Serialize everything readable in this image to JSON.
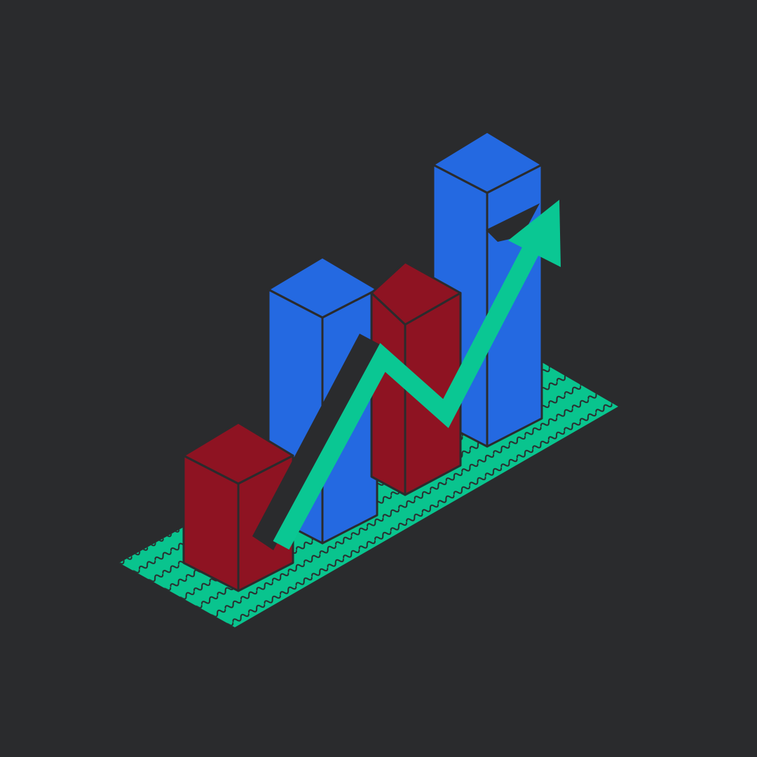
{
  "illustration": {
    "subject": "isometric-bar-chart-with-rising-arrow",
    "colors": {
      "background": "#2a2b2d",
      "outline": "#2a2b2d",
      "blue_face": "#2469e1",
      "red_face": "#8e1322",
      "base_green": "#09c48e",
      "arrow_green": "#0ac793",
      "arrow_shadow": "#2a2b2d"
    },
    "bars": [
      {
        "name": "red-bar-front-left",
        "color": "red",
        "relative_height": 0.26
      },
      {
        "name": "blue-bar-back-left",
        "color": "blue",
        "relative_height": 0.49
      },
      {
        "name": "red-bar-middle",
        "color": "red",
        "relative_height": 0.43
      },
      {
        "name": "blue-bar-back-right",
        "color": "blue",
        "relative_height": 0.63
      }
    ],
    "arrow_direction": "up-right",
    "base_pattern": "squiggle"
  }
}
